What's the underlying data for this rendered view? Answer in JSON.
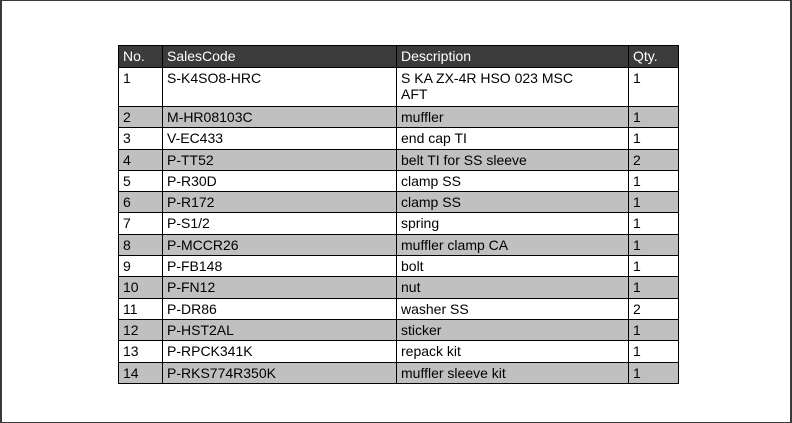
{
  "table": {
    "columns": [
      {
        "label": "No."
      },
      {
        "label": "SalesCode"
      },
      {
        "label": "Description"
      },
      {
        "label": "Qty."
      }
    ],
    "rows": [
      {
        "no": "1",
        "sales_code": "S-K4SO8-HRC",
        "description": "S KA ZX-4R HSO 023 MSC AFT",
        "qty": "1"
      },
      {
        "no": "2",
        "sales_code": "M-HR08103C",
        "description": "muffler",
        "qty": "1"
      },
      {
        "no": "3",
        "sales_code": "V-EC433",
        "description": "end cap TI",
        "qty": "1"
      },
      {
        "no": "4",
        "sales_code": "P-TT52",
        "description": "belt TI for SS sleeve",
        "qty": "2"
      },
      {
        "no": "5",
        "sales_code": "P-R30D",
        "description": "clamp SS",
        "qty": "1"
      },
      {
        "no": "6",
        "sales_code": "P-R172",
        "description": "clamp SS",
        "qty": "1"
      },
      {
        "no": "7",
        "sales_code": "P-S1/2",
        "description": "spring",
        "qty": "1"
      },
      {
        "no": "8",
        "sales_code": "P-MCCR26",
        "description": "muffler clamp CA",
        "qty": "1"
      },
      {
        "no": "9",
        "sales_code": "P-FB148",
        "description": "bolt",
        "qty": "1"
      },
      {
        "no": "10",
        "sales_code": "P-FN12",
        "description": "nut",
        "qty": "1"
      },
      {
        "no": "11",
        "sales_code": "P-DR86",
        "description": "washer SS",
        "qty": "2"
      },
      {
        "no": "12",
        "sales_code": "P-HST2AL",
        "description": "sticker",
        "qty": "1"
      },
      {
        "no": "13",
        "sales_code": "P-RPCK341K",
        "description": "repack kit",
        "qty": "1"
      },
      {
        "no": "14",
        "sales_code": "P-RKS774R350K",
        "description": "muffler sleeve kit",
        "qty": "1"
      }
    ]
  },
  "colors": {
    "header_bg": "#3b3b3b",
    "header_text": "#ffffff",
    "row_alt_bg": "#c0c0c0",
    "row_bg": "#ffffff",
    "border": "#000000",
    "frame": "#3a3a3a"
  }
}
